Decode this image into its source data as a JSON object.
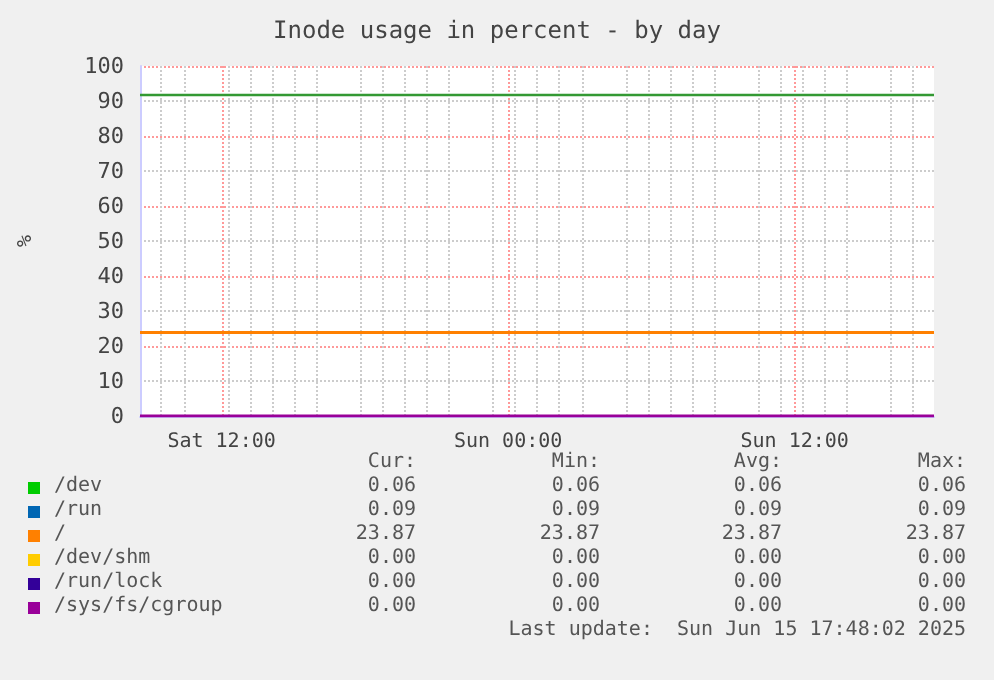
{
  "chart_data": {
    "type": "line",
    "title": "Inode usage in percent - by day",
    "ylabel": "%",
    "x": [
      "2025-06-14T08:35",
      "2025-06-15T17:50"
    ],
    "xlim": [
      "2025-06-14T08:35",
      "2025-06-15T17:50"
    ],
    "xticks": [
      {
        "value": "2025-06-14T12:00",
        "label": "Sat 12:00"
      },
      {
        "value": "2025-06-15T00:00",
        "label": "Sun 00:00"
      },
      {
        "value": "2025-06-15T12:00",
        "label": "Sun 12:00"
      }
    ],
    "ylim": [
      0,
      100
    ],
    "yticks": [
      0,
      10,
      20,
      30,
      40,
      50,
      60,
      70,
      80,
      90,
      100
    ],
    "series": [
      {
        "name": "/dev",
        "color": "#00cc00",
        "values": [
          null,
          null
        ]
      },
      {
        "name": "/run",
        "color": "#0066b3",
        "values": [
          null,
          null
        ]
      },
      {
        "name": "/",
        "color": "#ff8000",
        "values": [
          23.87,
          23.87
        ]
      },
      {
        "name": "/dev/shm",
        "color": "#ffcc00",
        "values": [
          null,
          null
        ]
      },
      {
        "name": "/run/lock",
        "color": "#330099",
        "values": [
          null,
          null
        ]
      },
      {
        "name": "/sys/fs/cgroup",
        "color": "#990099",
        "values": [
          0,
          0
        ]
      }
    ],
    "ref_lines": [
      {
        "axis": "y",
        "value": 92,
        "color": "#339933"
      }
    ],
    "annotations": [
      "Cur:",
      "Min:",
      "Avg:",
      "Max:",
      "0.06",
      "0.06",
      "0.06",
      "0.06",
      "0.09",
      "0.09",
      "0.09",
      "0.09",
      "23.87",
      "23.87",
      "23.87",
      "23.87",
      "0.00",
      "0.00",
      "0.00",
      "0.00",
      "0.00",
      "0.00",
      "0.00",
      "0.00",
      "0.00",
      "0.00",
      "0.00",
      "0.00",
      "Last update:  Sun Jun 15 17:48:02 2025"
    ],
    "grid": true,
    "legend": "bottom",
    "marker": "none",
    "line_style": "solid"
  }
}
